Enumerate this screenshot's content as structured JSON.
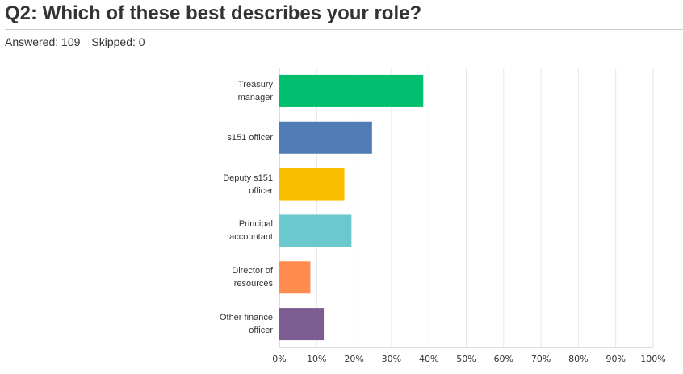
{
  "header": {
    "title": "Q2: Which of these best describes your role?",
    "answered": "Answered: 109",
    "skipped": "Skipped: 0"
  },
  "chart_data": {
    "type": "barh",
    "categories": [
      "Treasury manager",
      "s151 officer",
      "Deputy s151 officer",
      "Principal accountant",
      "Director of resources",
      "Other finance officer"
    ],
    "values": [
      38.5,
      24.8,
      17.4,
      19.3,
      8.3,
      11.9
    ],
    "colors": [
      "#00bf6f",
      "#507cb6",
      "#f9be00",
      "#6bc8cd",
      "#ff8b4f",
      "#7d5d91"
    ],
    "xlim": [
      0,
      100
    ],
    "xticks": [
      {
        "value": 0,
        "label": "0%"
      },
      {
        "value": 10,
        "label": "10%"
      },
      {
        "value": 20,
        "label": "20%"
      },
      {
        "value": 30,
        "label": "30%"
      },
      {
        "value": 40,
        "label": "40%"
      },
      {
        "value": 50,
        "label": "50%"
      },
      {
        "value": 60,
        "label": "60%"
      },
      {
        "value": 70,
        "label": "70%"
      },
      {
        "value": 80,
        "label": "80%"
      },
      {
        "value": 90,
        "label": "90%"
      },
      {
        "value": 100,
        "label": "100%"
      }
    ],
    "grid": true
  }
}
